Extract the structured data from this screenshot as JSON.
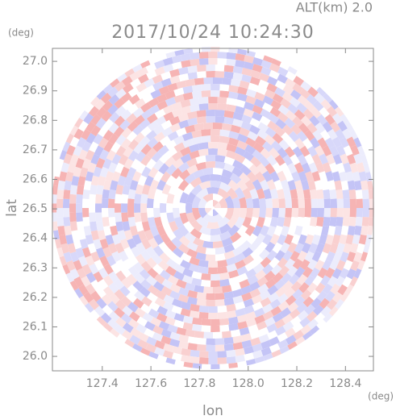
{
  "chart_data": {
    "type": "radar-ppi",
    "title": "2017/10/24 10:24:30",
    "altitude_label": "ALT(km)  2.0",
    "y_unit": "(deg)",
    "x_unit": "(deg)",
    "xlabel": "lon",
    "ylabel": "lat",
    "xlim": [
      127.195,
      128.515
    ],
    "ylim": [
      25.951,
      27.044
    ],
    "xticks": [
      127.4,
      127.6,
      127.8,
      {
        "value": 128.0,
        "label": "128.0"
      },
      128.2,
      128.4
    ],
    "yticks": [
      {
        "value": 26.0,
        "label": "26.0"
      },
      26.1,
      26.2,
      26.3,
      26.4,
      26.5,
      26.6,
      26.7,
      26.8,
      26.9,
      {
        "value": 27.0,
        "label": "27.0"
      }
    ]
  }
}
